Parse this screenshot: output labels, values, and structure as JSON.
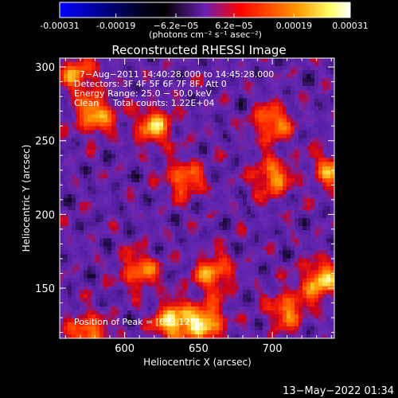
{
  "chart_data": {
    "type": "heatmap",
    "title": "Reconstructed RHESSI Image",
    "xlabel": "Heliocentric X (arcsec)",
    "ylabel": "Heliocentric Y (arcsec)",
    "xlim": [
      556,
      742
    ],
    "ylim": [
      116,
      306
    ],
    "x_ticks": [
      600,
      650,
      700
    ],
    "y_ticks": [
      150,
      200,
      250,
      300
    ],
    "colorbar": {
      "tick_labels": [
        "-0.00031",
        "-0.00019",
        "−6.2e−05",
        "6.2e−05",
        "0.00019",
        "0.00031"
      ],
      "tick_values": [
        -0.00031,
        -0.00019,
        -6.2e-05,
        6.2e-05,
        0.00019,
        0.00031
      ],
      "units": "(photons cm⁻² s⁻¹ asec⁻²)",
      "range": [
        -0.00031,
        0.00031
      ],
      "colors": [
        "#0000ff",
        "#000000",
        "#6a1fb3",
        "#ff0000",
        "#ff9900",
        "#ffff66",
        "#ffffff"
      ]
    },
    "annotations": {
      "time": "7−Aug−2011 14:40:28.000 to 14:45:28.000",
      "detectors": "Detectors: 3F 4F 5F 6F 7F 8F, Att 0",
      "energy": "Energy Range: 25.0 − 50.0 keV",
      "clean": "Clean     Total counts: 1.22E+04",
      "peak": "Position of Peak = [633,127]"
    },
    "bright_sources": [
      {
        "x": 568,
        "y": 295,
        "level": 0.7
      },
      {
        "x": 580,
        "y": 268,
        "level": 0.85
      },
      {
        "x": 620,
        "y": 260,
        "level": 0.8
      },
      {
        "x": 700,
        "y": 262,
        "level": 0.75
      },
      {
        "x": 640,
        "y": 224,
        "level": 0.7
      },
      {
        "x": 700,
        "y": 225,
        "level": 0.75
      },
      {
        "x": 740,
        "y": 230,
        "level": 0.7
      },
      {
        "x": 610,
        "y": 162,
        "level": 0.7
      },
      {
        "x": 660,
        "y": 160,
        "level": 0.75
      },
      {
        "x": 733,
        "y": 155,
        "level": 0.9
      },
      {
        "x": 633,
        "y": 127,
        "level": 1.0
      },
      {
        "x": 655,
        "y": 127,
        "level": 0.9
      },
      {
        "x": 710,
        "y": 135,
        "level": 0.7
      },
      {
        "x": 575,
        "y": 120,
        "level": 0.75
      }
    ]
  },
  "footer": {
    "timestamp": "13−May−2022 01:34"
  }
}
